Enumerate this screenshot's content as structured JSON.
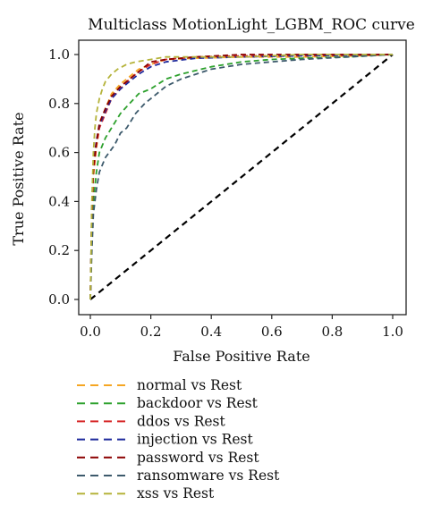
{
  "chart_data": {
    "type": "line",
    "title": "Multiclass MotionLight_LGBM_ROC curve",
    "xlabel": "False Positive Rate",
    "ylabel": "True Positive Rate",
    "xlim": [
      0.0,
      1.0
    ],
    "ylim": [
      0.0,
      1.0
    ],
    "xticks": [
      "0.0",
      "0.2",
      "0.4",
      "0.6",
      "0.8",
      "1.0"
    ],
    "yticks": [
      "0.0",
      "0.2",
      "0.4",
      "0.6",
      "0.8",
      "1.0"
    ],
    "grid": false,
    "legend_position": "below",
    "diagonal": {
      "x": [
        0,
        1
      ],
      "y": [
        0,
        1
      ],
      "style": "dashed",
      "color": "#000000"
    },
    "series": [
      {
        "name": "normal vs Rest",
        "color": "#f5a623",
        "x": [
          0,
          0.005,
          0.01,
          0.02,
          0.03,
          0.05,
          0.07,
          0.1,
          0.13,
          0.16,
          0.2,
          0.25,
          0.35,
          0.5,
          0.7,
          0.9,
          1.0
        ],
        "y": [
          0,
          0.3,
          0.5,
          0.62,
          0.7,
          0.78,
          0.84,
          0.88,
          0.91,
          0.94,
          0.96,
          0.98,
          0.985,
          0.99,
          0.99,
          0.995,
          1.0
        ]
      },
      {
        "name": "backdoor vs Rest",
        "color": "#2ca02c",
        "x": [
          0,
          0.005,
          0.01,
          0.02,
          0.03,
          0.05,
          0.08,
          0.1,
          0.13,
          0.16,
          0.2,
          0.25,
          0.3,
          0.4,
          0.5,
          0.6,
          0.7,
          0.85,
          1.0
        ],
        "y": [
          0,
          0.25,
          0.4,
          0.52,
          0.6,
          0.66,
          0.72,
          0.76,
          0.8,
          0.84,
          0.86,
          0.9,
          0.92,
          0.95,
          0.97,
          0.98,
          0.985,
          0.99,
          1.0
        ]
      },
      {
        "name": "ddos vs Rest",
        "color": "#d62728",
        "x": [
          0,
          0.005,
          0.01,
          0.02,
          0.03,
          0.05,
          0.07,
          0.1,
          0.13,
          0.16,
          0.2,
          0.25,
          0.35,
          0.5,
          0.7,
          1.0
        ],
        "y": [
          0,
          0.35,
          0.52,
          0.63,
          0.7,
          0.76,
          0.82,
          0.86,
          0.9,
          0.93,
          0.96,
          0.98,
          0.99,
          0.995,
          0.995,
          1.0
        ]
      },
      {
        "name": "injection vs Rest",
        "color": "#1f2a9c",
        "x": [
          0,
          0.005,
          0.01,
          0.02,
          0.03,
          0.05,
          0.07,
          0.1,
          0.13,
          0.16,
          0.2,
          0.25,
          0.35,
          0.5,
          0.7,
          1.0
        ],
        "y": [
          0,
          0.38,
          0.55,
          0.65,
          0.71,
          0.77,
          0.82,
          0.86,
          0.89,
          0.92,
          0.95,
          0.97,
          0.985,
          0.99,
          0.995,
          1.0
        ]
      },
      {
        "name": "password vs Rest",
        "color": "#8b0000",
        "x": [
          0,
          0.005,
          0.01,
          0.02,
          0.03,
          0.05,
          0.07,
          0.1,
          0.13,
          0.16,
          0.2,
          0.25,
          0.35,
          0.5,
          0.7,
          1.0
        ],
        "y": [
          0,
          0.36,
          0.54,
          0.64,
          0.72,
          0.78,
          0.83,
          0.87,
          0.9,
          0.93,
          0.97,
          0.98,
          0.99,
          1.0,
          1.0,
          1.0
        ]
      },
      {
        "name": "ransomware vs Rest",
        "color": "#3d5a6c",
        "x": [
          0,
          0.005,
          0.01,
          0.02,
          0.03,
          0.05,
          0.08,
          0.1,
          0.12,
          0.15,
          0.18,
          0.2,
          0.25,
          0.3,
          0.4,
          0.5,
          0.6,
          0.7,
          0.85,
          1.0
        ],
        "y": [
          0,
          0.2,
          0.35,
          0.45,
          0.52,
          0.58,
          0.63,
          0.68,
          0.7,
          0.76,
          0.8,
          0.82,
          0.87,
          0.9,
          0.94,
          0.96,
          0.97,
          0.98,
          0.99,
          1.0
        ]
      },
      {
        "name": "xss vs Rest",
        "color": "#b5b33a",
        "x": [
          0,
          0.005,
          0.01,
          0.015,
          0.02,
          0.03,
          0.04,
          0.05,
          0.07,
          0.09,
          0.12,
          0.15,
          0.2,
          0.25,
          0.35,
          0.5,
          0.7,
          1.0
        ],
        "y": [
          0,
          0.4,
          0.6,
          0.7,
          0.76,
          0.82,
          0.86,
          0.89,
          0.92,
          0.94,
          0.96,
          0.97,
          0.98,
          0.99,
          0.99,
          0.99,
          1.0,
          1.0
        ]
      }
    ]
  }
}
